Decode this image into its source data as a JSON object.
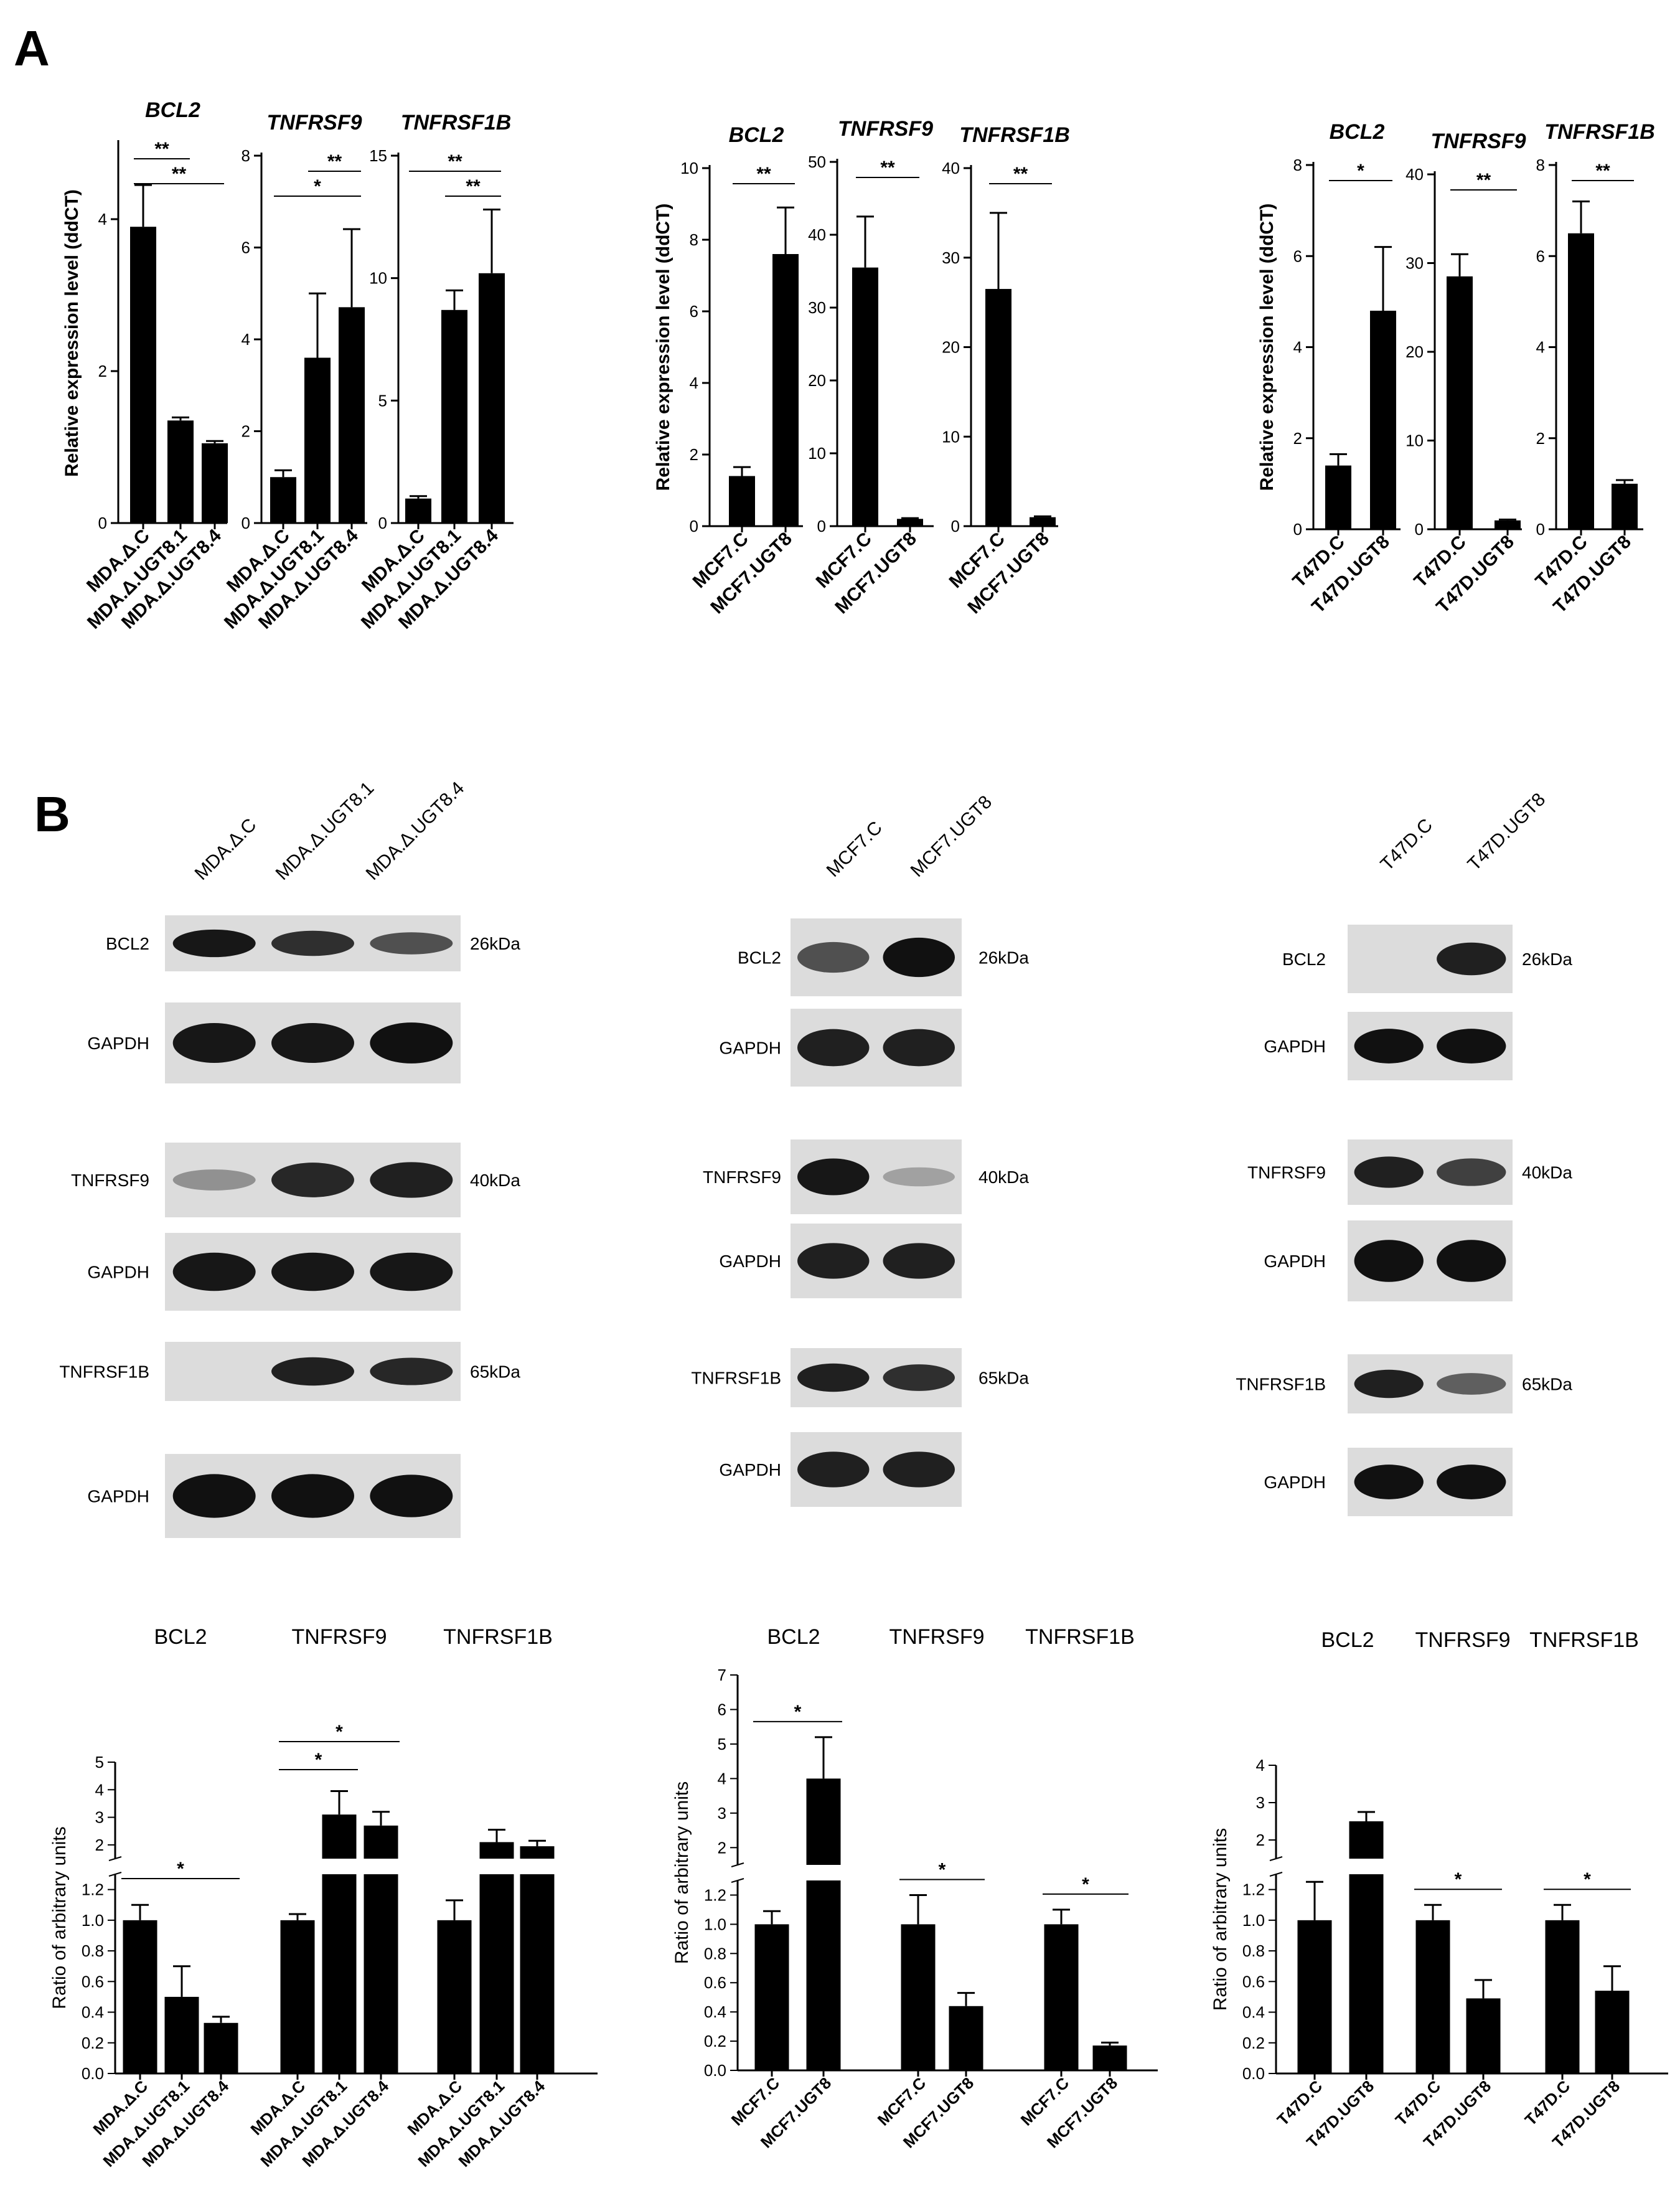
{
  "panel_labels": [
    "A",
    "B"
  ],
  "chart_data": [
    {
      "type": "bar",
      "group": "MDA",
      "title": "BCL2",
      "ylabel": "Relative expression level (ddCT)",
      "categories": [
        "MDA.Δ.C",
        "MDA.Δ.UGT8.1",
        "MDA.Δ.UGT8.4"
      ],
      "values": [
        3.9,
        1.35,
        1.05
      ],
      "errors": [
        0.55,
        0.04,
        0.03
      ],
      "ylim": [
        0,
        5
      ],
      "yticks": [
        "0",
        "2",
        "4"
      ],
      "ytick_values": [
        0,
        2,
        4
      ],
      "sig": [
        {
          "from": 0,
          "to": 1,
          "label": "**"
        },
        {
          "from": 0,
          "to": 2,
          "label": "**"
        }
      ]
    },
    {
      "type": "bar",
      "group": "MDA",
      "title": "TNFRSF9",
      "ylabel": "",
      "categories": [
        "MDA.Δ.C",
        "MDA.Δ.UGT8.1",
        "MDA.Δ.UGT8.4"
      ],
      "values": [
        1.0,
        3.6,
        4.7
      ],
      "errors": [
        0.15,
        1.4,
        1.7
      ],
      "ylim": [
        0,
        8
      ],
      "yticks": [
        "0",
        "2",
        "4",
        "6",
        "8"
      ],
      "ytick_values": [
        0,
        2,
        4,
        6,
        8
      ],
      "sig": [
        {
          "from": 1,
          "to": 2,
          "label": "**"
        },
        {
          "from": 0,
          "to": 2,
          "label": "*"
        }
      ]
    },
    {
      "type": "bar",
      "group": "MDA",
      "title": "TNFRSF1B",
      "ylabel": "",
      "categories": [
        "MDA.Δ.C",
        "MDA.Δ.UGT8.1",
        "MDA.Δ.UGT8.4"
      ],
      "values": [
        1.0,
        8.7,
        10.2
      ],
      "errors": [
        0.1,
        0.8,
        2.6
      ],
      "ylim": [
        0,
        15
      ],
      "yticks": [
        "0",
        "5",
        "10",
        "15"
      ],
      "ytick_values": [
        0,
        5,
        10,
        15
      ],
      "sig": [
        {
          "from": 0,
          "to": 2,
          "label": "**"
        },
        {
          "from": 1,
          "to": 2,
          "label": "**"
        }
      ]
    },
    {
      "type": "bar",
      "group": "MCF7",
      "title": "BCL2",
      "ylabel": "Relative expression level (ddCT)",
      "categories": [
        "MCF7.C",
        "MCF7.UGT8"
      ],
      "values": [
        1.4,
        7.6
      ],
      "errors": [
        0.25,
        1.3
      ],
      "ylim": [
        0,
        10
      ],
      "yticks": [
        "0",
        "2",
        "4",
        "6",
        "8",
        "10"
      ],
      "ytick_values": [
        0,
        2,
        4,
        6,
        8,
        10
      ],
      "sig": [
        {
          "from": 0,
          "to": 1,
          "label": "**"
        }
      ]
    },
    {
      "type": "bar",
      "group": "MCF7",
      "title": "TNFRSF9",
      "ylabel": "",
      "categories": [
        "MCF7.C",
        "MCF7.UGT8"
      ],
      "values": [
        35.5,
        1.0
      ],
      "errors": [
        7.0,
        0.1
      ],
      "ylim": [
        0,
        50
      ],
      "yticks": [
        "0",
        "10",
        "20",
        "30",
        "40",
        "50"
      ],
      "ytick_values": [
        0,
        10,
        20,
        30,
        40,
        50
      ],
      "sig": [
        {
          "from": 0,
          "to": 1,
          "label": "**"
        }
      ]
    },
    {
      "type": "bar",
      "group": "MCF7",
      "title": "TNFRSF1B",
      "ylabel": "",
      "categories": [
        "MCF7.C",
        "MCF7.UGT8"
      ],
      "values": [
        26.5,
        1.0
      ],
      "errors": [
        8.5,
        0.1
      ],
      "ylim": [
        0,
        40
      ],
      "yticks": [
        "0",
        "10",
        "20",
        "30",
        "40"
      ],
      "ytick_values": [
        0,
        10,
        20,
        30,
        40
      ],
      "sig": [
        {
          "from": 0,
          "to": 1,
          "label": "**"
        }
      ]
    },
    {
      "type": "bar",
      "group": "T47D",
      "title": "BCL2",
      "ylabel": "Relative expression level (ddCT)",
      "categories": [
        "T47D.C",
        "T47D.UGT8"
      ],
      "values": [
        1.4,
        4.8
      ],
      "errors": [
        0.25,
        1.4
      ],
      "ylim": [
        0,
        8
      ],
      "yticks": [
        "0",
        "2",
        "4",
        "6",
        "8"
      ],
      "ytick_values": [
        0,
        2,
        4,
        6,
        8
      ],
      "sig": [
        {
          "from": 0,
          "to": 1,
          "label": "*"
        }
      ]
    },
    {
      "type": "bar",
      "group": "T47D",
      "title": "TNFRSF9",
      "ylabel": "",
      "categories": [
        "T47D.C",
        "T47D.UGT8"
      ],
      "values": [
        28.5,
        1.0
      ],
      "errors": [
        2.5,
        0.1
      ],
      "ylim": [
        0,
        40
      ],
      "yticks": [
        "0",
        "10",
        "20",
        "30",
        "40"
      ],
      "ytick_values": [
        0,
        10,
        20,
        30,
        40
      ],
      "sig": [
        {
          "from": 0,
          "to": 1,
          "label": "**"
        }
      ]
    },
    {
      "type": "bar",
      "group": "T47D",
      "title": "TNFRSF1B",
      "ylabel": "",
      "categories": [
        "T47D.C",
        "T47D.UGT8"
      ],
      "values": [
        6.5,
        1.0
      ],
      "errors": [
        0.7,
        0.08
      ],
      "ylim": [
        0,
        8
      ],
      "yticks": [
        "0",
        "2",
        "4",
        "6",
        "8"
      ],
      "ytick_values": [
        0,
        2,
        4,
        6,
        8
      ],
      "sig": [
        {
          "from": 0,
          "to": 1,
          "label": "**"
        }
      ]
    },
    {
      "type": "bar",
      "group": "MDA-quant",
      "ylabel": "Ratio of arbitrary units",
      "titles": [
        "BCL2",
        "TNFRSF9",
        "TNFRSF1B"
      ],
      "categories": [
        "MDA.Δ.C",
        "MDA.Δ.UGT8.1",
        "MDA.Δ.UGT8.4"
      ],
      "series": [
        {
          "values": [
            1.0,
            0.5,
            0.33
          ],
          "errors": [
            0.1,
            0.2,
            0.04
          ]
        },
        {
          "values": [
            1.0,
            3.1,
            2.7
          ],
          "errors": [
            0.04,
            0.85,
            0.5
          ]
        },
        {
          "values": [
            1.0,
            2.1,
            1.95
          ],
          "errors": [
            0.13,
            0.45,
            0.2
          ]
        }
      ],
      "ylim": [
        0,
        5
      ],
      "axis_break": [
        1.3,
        1.5
      ],
      "yticks": [
        "0.0",
        "0.2",
        "0.4",
        "0.6",
        "0.8",
        "1.0",
        "1.2",
        "2",
        "3",
        "4",
        "5"
      ],
      "ytick_values": [
        0,
        0.2,
        0.4,
        0.6,
        0.8,
        1.0,
        1.2,
        2,
        3,
        4,
        5
      ],
      "sig": [
        {
          "group": 0,
          "from": 0,
          "to": 2,
          "label": "*"
        },
        {
          "group": 1,
          "from": 0,
          "to": 1,
          "label": "*"
        },
        {
          "group": 1,
          "from": 0,
          "to": 2,
          "label": "*"
        }
      ]
    },
    {
      "type": "bar",
      "group": "MCF7-quant",
      "ylabel": "Ratio of arbitrary units",
      "titles": [
        "BCL2",
        "TNFRSF9",
        "TNFRSF1B"
      ],
      "categories": [
        "MCF7.C",
        "MCF7.UGT8"
      ],
      "series": [
        {
          "values": [
            1.0,
            4.0
          ],
          "errors": [
            0.09,
            1.2
          ]
        },
        {
          "values": [
            1.0,
            0.44
          ],
          "errors": [
            0.2,
            0.09
          ]
        },
        {
          "values": [
            1.0,
            0.17
          ],
          "errors": [
            0.1,
            0.02
          ]
        }
      ],
      "ylim": [
        0,
        7
      ],
      "axis_break": [
        1.3,
        1.5
      ],
      "yticks": [
        "0.0",
        "0.2",
        "0.4",
        "0.6",
        "0.8",
        "1.0",
        "1.2",
        "2",
        "3",
        "4",
        "5",
        "6",
        "7"
      ],
      "ytick_values": [
        0,
        0.2,
        0.4,
        0.6,
        0.8,
        1.0,
        1.2,
        2,
        3,
        4,
        5,
        6,
        7
      ],
      "sig": [
        {
          "group": 0,
          "from": 0,
          "to": 1,
          "label": "*"
        },
        {
          "group": 1,
          "from": 0,
          "to": 1,
          "label": "*"
        },
        {
          "group": 2,
          "from": 0,
          "to": 1,
          "label": "*"
        }
      ]
    },
    {
      "type": "bar",
      "group": "T47D-quant",
      "ylabel": "Ratio of arbitrary units",
      "titles": [
        "BCL2",
        "TNFRSF9",
        "TNFRSF1B"
      ],
      "categories": [
        "T47D.C",
        "T47D.UGT8"
      ],
      "series": [
        {
          "values": [
            1.0,
            2.5
          ],
          "errors": [
            0.25,
            0.25
          ]
        },
        {
          "values": [
            1.0,
            0.49
          ],
          "errors": [
            0.1,
            0.12
          ]
        },
        {
          "values": [
            1.0,
            0.54
          ],
          "errors": [
            0.1,
            0.16
          ]
        }
      ],
      "ylim": [
        0,
        4
      ],
      "axis_break": [
        1.3,
        1.5
      ],
      "yticks": [
        "0.0",
        "0.2",
        "0.4",
        "0.6",
        "0.8",
        "1.0",
        "1.2",
        "2",
        "3",
        "4"
      ],
      "ytick_values": [
        0,
        0.2,
        0.4,
        0.6,
        0.8,
        1.0,
        1.2,
        2,
        3,
        4
      ],
      "sig": [
        {
          "group": 1,
          "from": 0,
          "to": 1,
          "label": "*"
        },
        {
          "group": 2,
          "from": 0,
          "to": 1,
          "label": "*"
        }
      ]
    }
  ],
  "blots": [
    {
      "group": "MDA",
      "lanes": [
        "MDA.Δ.C",
        "MDA.Δ.UGT8.1",
        "MDA.Δ.UGT8.4"
      ],
      "rows": [
        {
          "protein": "BCL2",
          "kda": "26kDa",
          "intensity": [
            0.9,
            0.75,
            0.55
          ]
        },
        {
          "protein": "GAPDH",
          "kda": "",
          "intensity": [
            0.9,
            0.9,
            0.95
          ]
        },
        {
          "protein": "TNFRSF9",
          "kda": "40kDa",
          "intensity": [
            0.15,
            0.8,
            0.85
          ]
        },
        {
          "protein": "GAPDH",
          "kda": "",
          "intensity": [
            0.9,
            0.9,
            0.9
          ]
        },
        {
          "protein": "TNFRSF1B",
          "kda": "65kDa",
          "intensity": [
            0.0,
            0.85,
            0.8
          ]
        },
        {
          "protein": "GAPDH",
          "kda": "",
          "intensity": [
            1.0,
            1.0,
            0.95
          ]
        }
      ]
    },
    {
      "group": "MCF7",
      "lanes": [
        "MCF7.C",
        "MCF7.UGT8"
      ],
      "rows": [
        {
          "protein": "BCL2",
          "kda": "26kDa",
          "intensity": [
            0.55,
            0.95
          ]
        },
        {
          "protein": "GAPDH",
          "kda": "",
          "intensity": [
            0.85,
            0.85
          ]
        },
        {
          "protein": "TNFRSF9",
          "kda": "40kDa",
          "intensity": [
            0.9,
            0.05
          ]
        },
        {
          "protein": "GAPDH",
          "kda": "",
          "intensity": [
            0.85,
            0.85
          ]
        },
        {
          "protein": "TNFRSF1B",
          "kda": "65kDa",
          "intensity": [
            0.85,
            0.75
          ]
        },
        {
          "protein": "GAPDH",
          "kda": "",
          "intensity": [
            0.85,
            0.85
          ]
        }
      ]
    },
    {
      "group": "T47D",
      "lanes": [
        "T47D.C",
        "T47D.UGT8"
      ],
      "rows": [
        {
          "protein": "BCL2",
          "kda": "26kDa",
          "intensity": [
            0.0,
            0.85
          ]
        },
        {
          "protein": "GAPDH",
          "kda": "",
          "intensity": [
            0.95,
            0.95
          ]
        },
        {
          "protein": "TNFRSF9",
          "kda": "40kDa",
          "intensity": [
            0.85,
            0.65
          ]
        },
        {
          "protein": "GAPDH",
          "kda": "",
          "intensity": [
            1.0,
            1.0
          ]
        },
        {
          "protein": "TNFRSF1B",
          "kda": "65kDa",
          "intensity": [
            0.85,
            0.45
          ]
        },
        {
          "protein": "GAPDH",
          "kda": "",
          "intensity": [
            0.95,
            0.95
          ]
        }
      ]
    }
  ]
}
